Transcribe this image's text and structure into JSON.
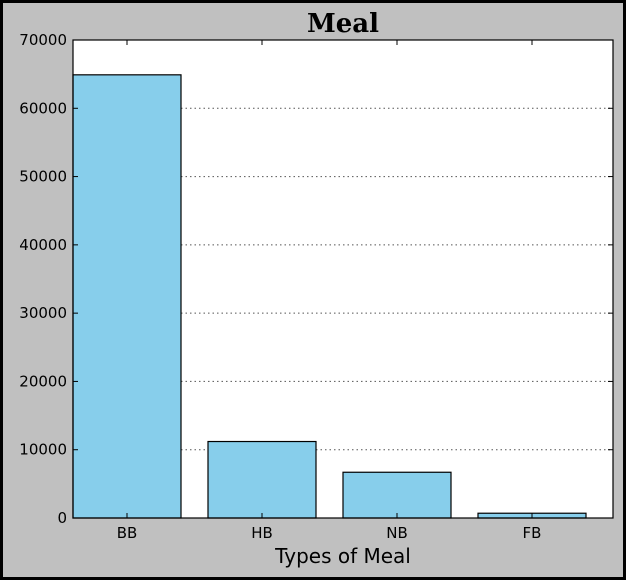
{
  "chart_data": {
    "type": "bar",
    "title": "Meal",
    "xlabel": "Types of Meal",
    "ylabel": "",
    "categories": [
      "BB",
      "HB",
      "NB",
      "FB"
    ],
    "values": [
      64900,
      11200,
      6700,
      700
    ],
    "ylim": [
      0,
      70000
    ],
    "yticks": [
      0,
      10000,
      20000,
      30000,
      40000,
      50000,
      60000,
      70000
    ],
    "grid": "y-dotted",
    "legend": "none",
    "bar_color": "#87ceeb",
    "background_color": "#c0c0c0",
    "plot_background": "#ffffff"
  }
}
